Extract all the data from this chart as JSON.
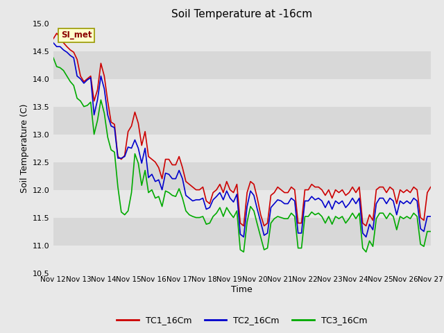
{
  "title": "Soil Temperature at -16cm",
  "xlabel": "Time",
  "ylabel": "Soil Temperature (C)",
  "ylim": [
    10.5,
    15.0
  ],
  "yticks": [
    10.5,
    11.0,
    11.5,
    12.0,
    12.5,
    13.0,
    13.5,
    14.0,
    14.5,
    15.0
  ],
  "x_labels": [
    "Nov 12",
    "Nov 13",
    "Nov 14",
    "Nov 15",
    "Nov 16",
    "Nov 17",
    "Nov 18",
    "Nov 19",
    "Nov 20",
    "Nov 21",
    "Nov 22",
    "Nov 23",
    "Nov 24",
    "Nov 25",
    "Nov 26",
    "Nov 27"
  ],
  "line_colors": [
    "#cc0000",
    "#0000cc",
    "#00aa00"
  ],
  "line_labels": [
    "TC1_16Cm",
    "TC2_16Cm",
    "TC3_16Cm"
  ],
  "fig_bg_color": "#e8e8e8",
  "plot_bg_color": "#e0e0e0",
  "band_colors": [
    "#e8e8e8",
    "#d8d8d8"
  ],
  "watermark_text": "SI_met",
  "watermark_bg": "#ffffcc",
  "watermark_fg": "#8b0000",
  "TC1_16Cm": [
    14.72,
    14.82,
    14.75,
    14.65,
    14.58,
    14.52,
    14.48,
    14.35,
    14.05,
    13.95,
    14.0,
    14.05,
    13.6,
    13.8,
    14.28,
    14.05,
    13.6,
    13.22,
    13.18,
    12.6,
    12.55,
    12.62,
    13.05,
    13.15,
    13.4,
    13.2,
    12.8,
    13.05,
    12.6,
    12.55,
    12.5,
    12.4,
    12.2,
    12.55,
    12.55,
    12.45,
    12.45,
    12.6,
    12.4,
    12.15,
    12.1,
    12.05,
    12.0,
    12.0,
    12.05,
    11.8,
    11.75,
    11.95,
    12.0,
    12.1,
    11.95,
    12.15,
    12.0,
    11.95,
    12.1,
    11.4,
    11.35,
    11.95,
    12.15,
    12.1,
    11.85,
    11.55,
    11.35,
    11.4,
    11.9,
    11.95,
    12.05,
    12.0,
    11.95,
    11.95,
    12.05,
    12.0,
    11.4,
    11.4,
    12.0,
    12.0,
    12.1,
    12.05,
    12.05,
    12.0,
    11.9,
    12.0,
    11.85,
    12.0,
    11.95,
    12.0,
    11.9,
    11.95,
    12.05,
    11.95,
    12.05,
    11.4,
    11.35,
    11.55,
    11.45,
    12.0,
    12.05,
    12.05,
    11.95,
    12.05,
    12.0,
    11.75,
    12.0,
    11.95,
    12.0,
    11.95,
    12.05,
    12.0,
    11.5,
    11.45,
    11.95,
    12.05
  ],
  "TC2_16Cm": [
    14.65,
    14.58,
    14.58,
    14.52,
    14.48,
    14.42,
    14.38,
    14.05,
    14.0,
    13.92,
    13.98,
    14.02,
    13.35,
    13.62,
    14.05,
    13.82,
    13.35,
    13.15,
    13.12,
    12.57,
    12.57,
    12.6,
    12.77,
    12.75,
    12.9,
    12.75,
    12.48,
    12.75,
    12.22,
    12.28,
    12.15,
    12.18,
    12.0,
    12.3,
    12.28,
    12.2,
    12.2,
    12.35,
    12.2,
    11.9,
    11.85,
    11.8,
    11.82,
    11.82,
    11.85,
    11.65,
    11.68,
    11.82,
    11.88,
    11.95,
    11.82,
    11.98,
    11.85,
    11.78,
    11.92,
    11.2,
    11.15,
    11.7,
    11.98,
    11.9,
    11.65,
    11.42,
    11.18,
    11.22,
    11.68,
    11.75,
    11.82,
    11.8,
    11.75,
    11.75,
    11.85,
    11.8,
    11.22,
    11.22,
    11.8,
    11.8,
    11.88,
    11.82,
    11.85,
    11.8,
    11.68,
    11.8,
    11.65,
    11.8,
    11.75,
    11.8,
    11.68,
    11.75,
    11.85,
    11.75,
    11.85,
    11.22,
    11.15,
    11.38,
    11.28,
    11.75,
    11.85,
    11.85,
    11.75,
    11.85,
    11.8,
    11.55,
    11.8,
    11.75,
    11.8,
    11.75,
    11.85,
    11.8,
    11.3,
    11.25,
    11.52,
    11.52
  ],
  "TC3_16Cm": [
    14.38,
    14.22,
    14.2,
    14.15,
    14.05,
    13.95,
    13.88,
    13.65,
    13.6,
    13.5,
    13.52,
    13.58,
    13.0,
    13.25,
    13.62,
    13.38,
    12.95,
    12.72,
    12.68,
    12.05,
    11.6,
    11.55,
    11.62,
    11.95,
    12.65,
    12.48,
    12.08,
    12.35,
    11.95,
    12.0,
    11.85,
    11.88,
    11.7,
    11.98,
    11.95,
    11.9,
    11.88,
    12.02,
    11.85,
    11.62,
    11.55,
    11.52,
    11.5,
    11.5,
    11.52,
    11.38,
    11.4,
    11.52,
    11.58,
    11.68,
    11.52,
    11.68,
    11.58,
    11.5,
    11.62,
    10.92,
    10.88,
    11.42,
    11.7,
    11.62,
    11.38,
    11.15,
    10.92,
    10.95,
    11.4,
    11.48,
    11.52,
    11.5,
    11.48,
    11.48,
    11.58,
    11.52,
    10.95,
    10.95,
    11.52,
    11.52,
    11.6,
    11.55,
    11.58,
    11.52,
    11.4,
    11.52,
    11.38,
    11.52,
    11.48,
    11.52,
    11.4,
    11.48,
    11.58,
    11.48,
    11.58,
    10.95,
    10.88,
    11.08,
    10.98,
    11.48,
    11.58,
    11.58,
    11.48,
    11.58,
    11.52,
    11.28,
    11.52,
    11.48,
    11.52,
    11.48,
    11.58,
    11.52,
    11.02,
    10.98,
    11.25,
    11.25
  ]
}
